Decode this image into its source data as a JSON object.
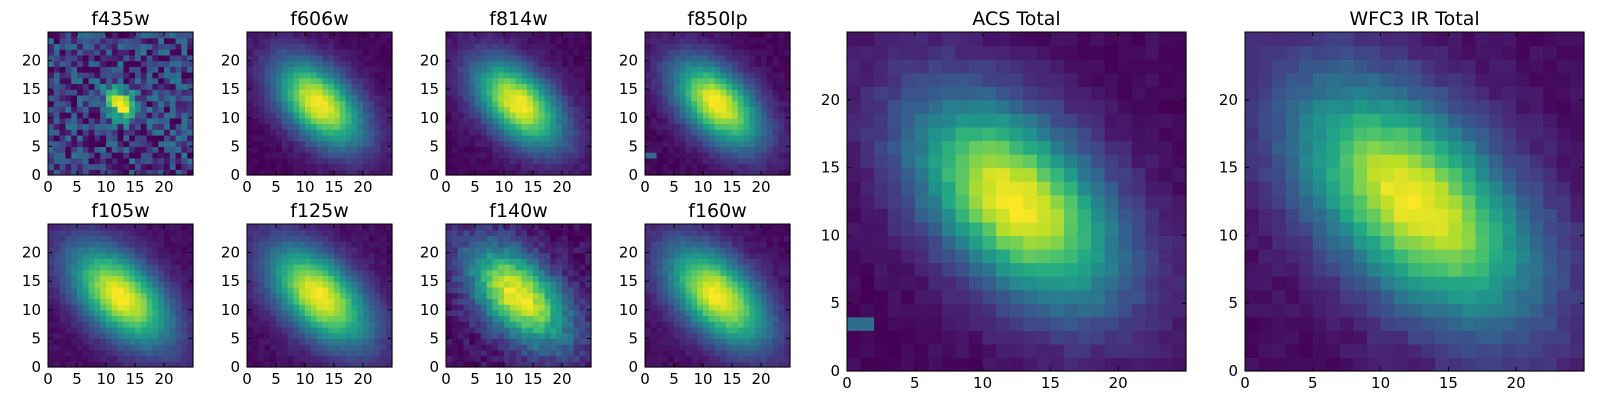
{
  "figure": {
    "background": "#ffffff"
  },
  "chart_data": [
    {
      "type": "heatmap",
      "title": "f435w",
      "xlabel": "",
      "ylabel": "",
      "xlim": [
        0,
        25
      ],
      "ylim": [
        0,
        25
      ],
      "xticks": [
        0,
        5,
        10,
        15,
        20
      ],
      "yticks": [
        0,
        5,
        10,
        15,
        20
      ],
      "grid": false,
      "colormap": "viridis",
      "image": {
        "shape": [
          25,
          25
        ],
        "peak": [
          12,
          12
        ],
        "peak_value": 1.0,
        "sigma_major": 2.2,
        "sigma_minor": 1.6,
        "angle_deg": 45,
        "background": 0.18,
        "noise": "high"
      }
    },
    {
      "type": "heatmap",
      "title": "f606w",
      "xlabel": "",
      "ylabel": "",
      "xlim": [
        0,
        25
      ],
      "ylim": [
        0,
        25
      ],
      "xticks": [
        0,
        5,
        10,
        15,
        20
      ],
      "yticks": [
        0,
        5,
        10,
        15,
        20
      ],
      "grid": false,
      "colormap": "viridis",
      "image": {
        "shape": [
          25,
          25
        ],
        "peak": [
          12,
          12
        ],
        "peak_value": 1.0,
        "sigma_major": 6.5,
        "sigma_minor": 3.8,
        "angle_deg": 45,
        "background": 0.02,
        "noise": "low"
      }
    },
    {
      "type": "heatmap",
      "title": "f814w",
      "xlabel": "",
      "ylabel": "",
      "xlim": [
        0,
        25
      ],
      "ylim": [
        0,
        25
      ],
      "xticks": [
        0,
        5,
        10,
        15,
        20
      ],
      "yticks": [
        0,
        5,
        10,
        15,
        20
      ],
      "grid": false,
      "colormap": "viridis",
      "image": {
        "shape": [
          25,
          25
        ],
        "peak": [
          12,
          12
        ],
        "peak_value": 1.0,
        "sigma_major": 6.5,
        "sigma_minor": 3.8,
        "angle_deg": 45,
        "background": 0.02,
        "noise": "low"
      }
    },
    {
      "type": "heatmap",
      "title": "f850lp",
      "xlabel": "",
      "ylabel": "",
      "xlim": [
        0,
        25
      ],
      "ylim": [
        0,
        25
      ],
      "xticks": [
        0,
        5,
        10,
        15,
        20
      ],
      "yticks": [
        0,
        5,
        10,
        15,
        20
      ],
      "grid": false,
      "colormap": "viridis",
      "image": {
        "shape": [
          25,
          25
        ],
        "peak": [
          12,
          12
        ],
        "peak_value": 1.0,
        "sigma_major": 6.5,
        "sigma_minor": 3.8,
        "angle_deg": 45,
        "background": 0.02,
        "noise": "low",
        "artifact": {
          "x": [
            0,
            2
          ],
          "y": [
            3,
            4
          ]
        }
      }
    },
    {
      "type": "heatmap",
      "title": "f105w",
      "xlabel": "",
      "ylabel": "",
      "xlim": [
        0,
        25
      ],
      "ylim": [
        0,
        25
      ],
      "xticks": [
        0,
        5,
        10,
        15,
        20
      ],
      "yticks": [
        0,
        5,
        10,
        15,
        20
      ],
      "grid": false,
      "colormap": "viridis",
      "image": {
        "shape": [
          25,
          25
        ],
        "peak": [
          12,
          12
        ],
        "peak_value": 1.0,
        "sigma_major": 7.5,
        "sigma_minor": 4.2,
        "angle_deg": 45,
        "background": 0.03,
        "noise": "low"
      }
    },
    {
      "type": "heatmap",
      "title": "f125w",
      "xlabel": "",
      "ylabel": "",
      "xlim": [
        0,
        25
      ],
      "ylim": [
        0,
        25
      ],
      "xticks": [
        0,
        5,
        10,
        15,
        20
      ],
      "yticks": [
        0,
        5,
        10,
        15,
        20
      ],
      "grid": false,
      "colormap": "viridis",
      "image": {
        "shape": [
          25,
          25
        ],
        "peak": [
          12,
          12
        ],
        "peak_value": 1.0,
        "sigma_major": 7.5,
        "sigma_minor": 4.2,
        "angle_deg": 45,
        "background": 0.03,
        "noise": "low"
      }
    },
    {
      "type": "heatmap",
      "title": "f140w",
      "xlabel": "",
      "ylabel": "",
      "xlim": [
        0,
        25
      ],
      "ylim": [
        0,
        25
      ],
      "xticks": [
        0,
        5,
        10,
        15,
        20
      ],
      "yticks": [
        0,
        5,
        10,
        15,
        20
      ],
      "grid": false,
      "colormap": "viridis",
      "image": {
        "shape": [
          25,
          25
        ],
        "peak": [
          12,
          12
        ],
        "peak_value": 1.0,
        "sigma_major": 7.5,
        "sigma_minor": 4.2,
        "angle_deg": 45,
        "background": 0.03,
        "noise": "medium"
      }
    },
    {
      "type": "heatmap",
      "title": "f160w",
      "xlabel": "",
      "ylabel": "",
      "xlim": [
        0,
        25
      ],
      "ylim": [
        0,
        25
      ],
      "xticks": [
        0,
        5,
        10,
        15,
        20
      ],
      "yticks": [
        0,
        5,
        10,
        15,
        20
      ],
      "grid": false,
      "colormap": "viridis",
      "image": {
        "shape": [
          25,
          25
        ],
        "peak": [
          12,
          12
        ],
        "peak_value": 1.0,
        "sigma_major": 7.5,
        "sigma_minor": 4.2,
        "angle_deg": 45,
        "background": 0.03,
        "noise": "low"
      }
    },
    {
      "type": "heatmap",
      "title": "ACS Total",
      "xlabel": "",
      "ylabel": "",
      "xlim": [
        0,
        25
      ],
      "ylim": [
        0,
        25
      ],
      "xticks": [
        0,
        5,
        10,
        15,
        20
      ],
      "yticks": [
        0,
        5,
        10,
        15,
        20
      ],
      "grid": false,
      "colormap": "viridis",
      "image": {
        "shape": [
          25,
          25
        ],
        "peak": [
          12,
          12
        ],
        "peak_value": 1.0,
        "sigma_major": 6.5,
        "sigma_minor": 3.8,
        "angle_deg": 45,
        "background": 0.02,
        "noise": "low",
        "artifact": {
          "x": [
            0,
            2
          ],
          "y": [
            3,
            4
          ]
        }
      }
    },
    {
      "type": "heatmap",
      "title": "WFC3 IR Total",
      "xlabel": "",
      "ylabel": "",
      "xlim": [
        0,
        25
      ],
      "ylim": [
        0,
        25
      ],
      "xticks": [
        0,
        5,
        10,
        15,
        20
      ],
      "yticks": [
        0,
        5,
        10,
        15,
        20
      ],
      "grid": false,
      "colormap": "viridis",
      "image": {
        "shape": [
          25,
          25
        ],
        "peak": [
          12,
          12
        ],
        "peak_value": 1.0,
        "sigma_major": 7.5,
        "sigma_minor": 4.2,
        "angle_deg": 45,
        "background": 0.03,
        "noise": "low"
      }
    }
  ]
}
